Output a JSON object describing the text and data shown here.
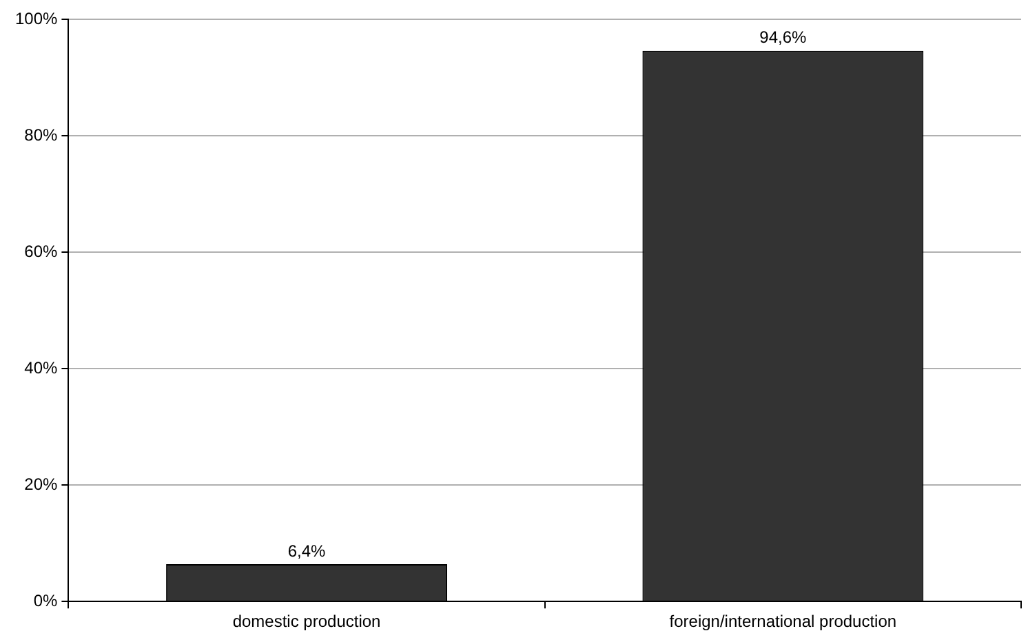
{
  "chart_data": {
    "type": "bar",
    "categories": [
      "domestic production",
      "foreign/international production"
    ],
    "values": [
      6.4,
      94.6
    ],
    "color": "#333333",
    "value_labels": [
      "6,4%",
      "94,6%"
    ],
    "ylim": [
      0,
      100
    ],
    "yticks": [
      {
        "value": 0,
        "label": "0%"
      },
      {
        "value": 20,
        "label": "20%"
      },
      {
        "value": 40,
        "label": "40%"
      },
      {
        "value": 60,
        "label": "60%"
      },
      {
        "value": 80,
        "label": "80%"
      },
      {
        "value": 100,
        "label": "100%"
      }
    ],
    "grid": "y"
  }
}
